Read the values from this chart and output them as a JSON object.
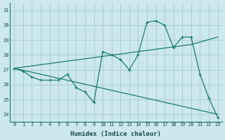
{
  "xlabel": "Humidex (Indice chaleur)",
  "bg_color": "#cce8ec",
  "grid_color": "#aacdd4",
  "line_color": "#1a7a6e",
  "xlim": [
    -0.5,
    23.5
  ],
  "ylim": [
    23.5,
    31.5
  ],
  "yticks": [
    24,
    25,
    26,
    27,
    28,
    29,
    30,
    31
  ],
  "xticks": [
    0,
    1,
    2,
    3,
    4,
    5,
    6,
    7,
    8,
    9,
    10,
    11,
    12,
    13,
    14,
    15,
    16,
    17,
    18,
    19,
    20,
    21,
    22,
    23
  ],
  "line1_x": [
    0,
    1,
    2,
    3,
    4,
    5,
    6,
    7,
    8,
    9,
    10,
    11,
    12,
    13,
    14,
    15,
    16,
    17,
    18,
    19,
    20,
    21,
    22,
    23
  ],
  "line1_y": [
    27.1,
    26.9,
    26.5,
    26.3,
    26.3,
    26.3,
    26.7,
    25.8,
    25.5,
    24.8,
    28.2,
    28.0,
    27.7,
    27.0,
    28.0,
    30.2,
    30.3,
    30.0,
    28.5,
    29.2,
    29.2,
    26.7,
    25.1,
    23.8
  ],
  "line2_x": [
    0,
    23
  ],
  "line2_y": [
    27.1,
    24.0
  ],
  "line3_x": [
    0,
    20,
    23
  ],
  "line3_y": [
    27.1,
    28.7,
    29.2
  ]
}
